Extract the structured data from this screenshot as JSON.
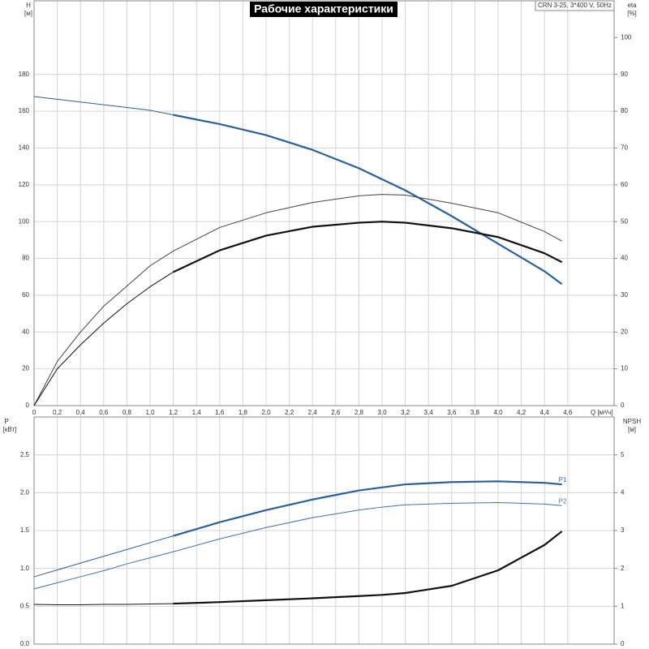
{
  "chart_data": [
    {
      "type": "line",
      "title": "Рабочие характеристики",
      "model": "CRN 3-25, 3*400 V, 50Hz",
      "ylabel": "H",
      "yunit": "[м]",
      "y2label": "eta",
      "y2unit": "[%]",
      "xlabel": "Q [м³/ч]",
      "xlim": [
        0,
        5
      ],
      "ylim": [
        0,
        220
      ],
      "y2lim": [
        0,
        110
      ],
      "grid": true,
      "xtick_labels": true,
      "xticks": [
        0,
        {
          "value": 0.2,
          "label": "0,2"
        },
        {
          "value": 0.4,
          "label": "0,4"
        },
        {
          "value": 0.6,
          "label": "0,6"
        },
        {
          "value": 0.8,
          "label": "0,8"
        },
        {
          "value": 1,
          "label": "1,0"
        },
        {
          "value": 1.2,
          "label": "1,2"
        },
        {
          "value": 1.4,
          "label": "1,4"
        },
        {
          "value": 1.6,
          "label": "1,6"
        },
        {
          "value": 1.8,
          "label": "1,8"
        },
        {
          "value": 2,
          "label": "2,0"
        },
        {
          "value": 2.2,
          "label": "2,2"
        },
        {
          "value": 2.4,
          "label": "2,4"
        },
        {
          "value": 2.6,
          "label": "2,6"
        },
        {
          "value": 2.8,
          "label": "2,8"
        },
        {
          "value": 3,
          "label": "3,0"
        },
        {
          "value": 3.2,
          "label": "3,2"
        },
        {
          "value": 3.4,
          "label": "3,4"
        },
        {
          "value": 3.6,
          "label": "3,6"
        },
        {
          "value": 3.8,
          "label": "3,8"
        },
        {
          "value": 4,
          "label": "4,0"
        },
        {
          "value": 4.2,
          "label": "4,2"
        },
        {
          "value": 4.4,
          "label": "4,4"
        },
        {
          "value": 4.6,
          "label": "4,6"
        }
      ],
      "yticks": [
        0,
        20,
        40,
        60,
        80,
        100,
        120,
        140,
        160,
        180
      ],
      "y2ticks": [
        0,
        10,
        20,
        30,
        40,
        50,
        60,
        70,
        80,
        90,
        100
      ],
      "x": [
        0,
        0.2,
        0.4,
        0.6,
        0.8,
        1.0,
        1.2,
        1.6,
        2.0,
        2.4,
        2.8,
        3.0,
        3.2,
        3.6,
        4.0,
        4.4,
        4.55
      ],
      "series": [
        {
          "color": "#2a5f9e",
          "bold_from": 1.2,
          "values": [
            168,
            166.5,
            165,
            163.5,
            162,
            160.5,
            158,
            153,
            147,
            139,
            129,
            123,
            117,
            103,
            88,
            73,
            66
          ]
        },
        {
          "color": "#444444",
          "axis": "y2",
          "values": [
            0,
            12,
            20,
            27,
            32.5,
            38,
            42,
            48.4,
            52.4,
            55.2,
            57,
            57.4,
            57.2,
            55,
            52.4,
            47.3,
            44.7
          ]
        },
        {
          "color": "#111111",
          "axis": "y2",
          "bold_from": 1.2,
          "values": [
            0,
            10,
            16.5,
            22.4,
            27.7,
            32.3,
            36.3,
            42.2,
            46.2,
            48.6,
            49.7,
            50,
            49.7,
            48.2,
            45.8,
            41.4,
            39
          ]
        }
      ]
    },
    {
      "type": "line",
      "ylabel": "P",
      "yunit": "[кВт]",
      "y2label": "NPSH",
      "y2unit": "[м]",
      "xlim": [
        0,
        5
      ],
      "ylim": [
        0,
        3
      ],
      "y2lim": [
        0,
        6
      ],
      "grid": true,
      "xtick_labels": false,
      "xticks": [
        0,
        0.2,
        0.4,
        0.6,
        0.8,
        1,
        1.2,
        1.4,
        1.6,
        1.8,
        2,
        2.2,
        2.4,
        2.6,
        2.8,
        3,
        3.2,
        3.4,
        3.6,
        3.8,
        4,
        4.2,
        4.4,
        4.6
      ],
      "yticks": [
        {
          "value": 0,
          "label": "0.0"
        },
        0.5,
        {
          "value": 1,
          "label": "1.0"
        },
        1.5,
        {
          "value": 2,
          "label": "2.0"
        },
        2.5
      ],
      "y2ticks": [
        0,
        1,
        2,
        3,
        4,
        5
      ],
      "x": [
        0,
        0.2,
        0.4,
        0.6,
        0.8,
        1.0,
        1.2,
        1.6,
        2.0,
        2.4,
        2.8,
        3.0,
        3.2,
        3.6,
        4.0,
        4.4,
        4.55
      ],
      "series": [
        {
          "name": "P1",
          "color": "#2a5f9e",
          "bold_from": 1.2,
          "values": [
            0.89,
            0.98,
            1.07,
            1.16,
            1.25,
            1.34,
            1.43,
            1.61,
            1.77,
            1.91,
            2.03,
            2.07,
            2.11,
            2.14,
            2.15,
            2.13,
            2.11
          ]
        },
        {
          "name": "P2",
          "color": "#3d72b0",
          "values": [
            0.73,
            0.81,
            0.89,
            0.97,
            1.06,
            1.14,
            1.22,
            1.39,
            1.54,
            1.67,
            1.77,
            1.81,
            1.84,
            1.86,
            1.87,
            1.85,
            1.83
          ]
        },
        {
          "color": "#111111",
          "axis": "y2",
          "bold_from": 1.2,
          "values": [
            1.05,
            1.04,
            1.04,
            1.05,
            1.05,
            1.06,
            1.07,
            1.11,
            1.16,
            1.21,
            1.27,
            1.3,
            1.35,
            1.54,
            1.95,
            2.62,
            2.98
          ]
        }
      ]
    }
  ]
}
